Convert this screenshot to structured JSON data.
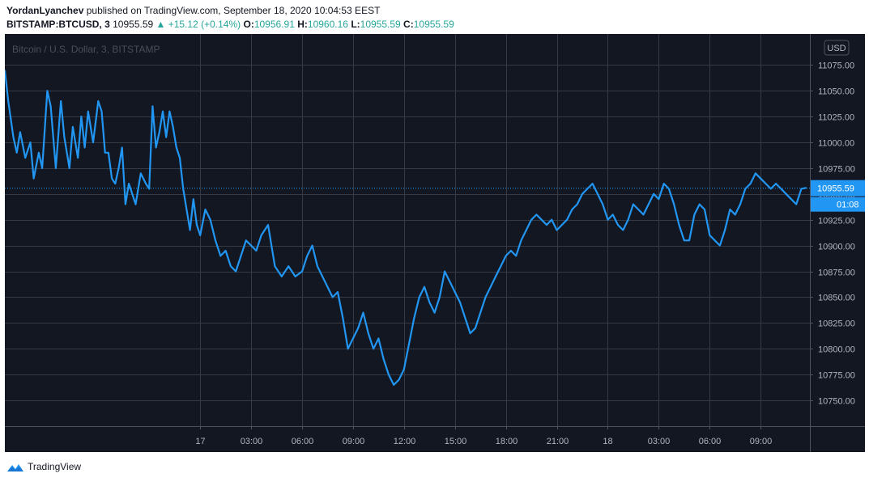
{
  "header": {
    "author": "YordanLyanchev",
    "published_text": "published on TradingView.com, September 18, 2020 10:04:53 EEST",
    "symbol": "BITSTAMP:BTCUSD, 3",
    "last": "10955.59",
    "change": "▲ +15.12 (+0.14%)",
    "o_label": "O:",
    "o_value": "10956.91",
    "h_label": "H:",
    "h_value": "10960.16",
    "l_label": "L:",
    "l_value": "10955.59",
    "c_label": "C:",
    "c_value": "10955.59"
  },
  "footer": {
    "brand": "TradingView",
    "logo_icon": "tradingview-logo-icon"
  },
  "colors": {
    "background": "#131722",
    "grid": "#363a45",
    "line": "#2196f3",
    "text": "#b2b5be",
    "up": "#26a69a"
  },
  "chart_data": {
    "type": "line",
    "watermark": "Bitcoin / U.S. Dollar, 3, BITSTAMP",
    "currency_badge": "USD",
    "last_price_label": "10955.59",
    "countdown_label": "01:08",
    "last_price": 10955.59,
    "ylim": [
      10725,
      11105
    ],
    "yticks": [
      10750,
      10775,
      10800,
      10825,
      10850,
      10875,
      10900,
      10925,
      10950,
      10975,
      11000,
      11025,
      11050,
      11075
    ],
    "ytick_labels": [
      "10750.00",
      "10775.00",
      "10800.00",
      "10825.00",
      "10850.00",
      "10875.00",
      "10900.00",
      "10925.00",
      "10950.00",
      "10975.00",
      "11000.00",
      "11025.00",
      "11050.00",
      "11075.00"
    ],
    "xlim": [
      -11.5,
      35.9
    ],
    "xticks": [
      0,
      3,
      6,
      9,
      12,
      15,
      18,
      21,
      24,
      27,
      30,
      33
    ],
    "xtick_labels": [
      "17",
      "03:00",
      "06:00",
      "09:00",
      "12:00",
      "15:00",
      "18:00",
      "21:00",
      "18",
      "03:00",
      "06:00",
      "09:00"
    ],
    "series": [
      {
        "x": [
          -11.5,
          -11.3,
          -11.0,
          -10.8,
          -10.6,
          -10.3,
          -10.0,
          -9.8,
          -9.5,
          -9.3,
          -9.2,
          -9.0,
          -8.8,
          -8.5,
          -8.2,
          -8.0,
          -7.7,
          -7.5,
          -7.2,
          -7.0,
          -6.8,
          -6.6,
          -6.3,
          -6.0,
          -5.8,
          -5.6,
          -5.4,
          -5.2,
          -5.0,
          -4.8,
          -4.6,
          -4.4,
          -4.2,
          -4.0,
          -3.8,
          -3.5,
          -3.2,
          -3.0,
          -2.8,
          -2.6,
          -2.4,
          -2.2,
          -2.0,
          -1.8,
          -1.6,
          -1.4,
          -1.2,
          -1.0,
          -0.8,
          -0.6,
          -0.4,
          -0.2,
          0.0,
          0.3,
          0.6,
          0.9,
          1.2,
          1.5,
          1.8,
          2.1,
          2.4,
          2.7,
          3.0,
          3.3,
          3.6,
          4.0,
          4.4,
          4.8,
          5.2,
          5.6,
          6.0,
          6.3,
          6.6,
          6.9,
          7.2,
          7.5,
          7.8,
          8.1,
          8.4,
          8.7,
          9.0,
          9.3,
          9.6,
          9.9,
          10.2,
          10.5,
          10.8,
          11.1,
          11.4,
          11.7,
          12.0,
          12.3,
          12.6,
          12.9,
          13.2,
          13.5,
          13.8,
          14.1,
          14.4,
          14.7,
          15.0,
          15.3,
          15.6,
          15.9,
          16.2,
          16.5,
          16.8,
          17.1,
          17.4,
          17.7,
          18.0,
          18.3,
          18.6,
          18.9,
          19.2,
          19.5,
          19.8,
          20.1,
          20.4,
          20.7,
          21.0,
          21.3,
          21.6,
          21.9,
          22.2,
          22.5,
          22.8,
          23.1,
          23.4,
          23.7,
          24.0,
          24.3,
          24.6,
          24.9,
          25.2,
          25.5,
          25.8,
          26.1,
          26.4,
          26.7,
          27.0,
          27.3,
          27.6,
          27.9,
          28.2,
          28.5,
          28.8,
          29.1,
          29.4,
          29.7,
          30.0,
          30.3,
          30.6,
          30.9,
          31.2,
          31.5,
          31.8,
          32.1,
          32.4,
          32.7,
          33.0,
          33.3,
          33.6,
          33.9,
          34.2,
          34.5,
          34.8,
          35.1,
          35.4,
          35.7
        ],
        "y": [
          11070,
          11040,
          11005,
          10990,
          11010,
          10985,
          11000,
          10965,
          10990,
          10975,
          11000,
          11050,
          11035,
          10975,
          11040,
          11005,
          10975,
          11015,
          10985,
          11025,
          10995,
          11030,
          11000,
          11040,
          11030,
          10990,
          10990,
          10965,
          10960,
          10975,
          10995,
          10940,
          10960,
          10950,
          10940,
          10970,
          10960,
          10955,
          11035,
          10995,
          11010,
          11030,
          11005,
          11030,
          11015,
          10995,
          10985,
          10955,
          10935,
          10915,
          10945,
          10920,
          10910,
          10935,
          10925,
          10905,
          10890,
          10895,
          10880,
          10875,
          10890,
          10905,
          10900,
          10895,
          10910,
          10920,
          10880,
          10870,
          10880,
          10870,
          10875,
          10890,
          10900,
          10880,
          10870,
          10860,
          10850,
          10855,
          10830,
          10800,
          10810,
          10820,
          10835,
          10815,
          10800,
          10810,
          10790,
          10775,
          10765,
          10770,
          10780,
          10805,
          10830,
          10850,
          10860,
          10845,
          10835,
          10850,
          10875,
          10865,
          10855,
          10845,
          10830,
          10815,
          10820,
          10835,
          10850,
          10860,
          10870,
          10880,
          10890,
          10895,
          10890,
          10905,
          10915,
          10925,
          10930,
          10925,
          10920,
          10925,
          10915,
          10920,
          10925,
          10935,
          10940,
          10950,
          10955,
          10960,
          10950,
          10940,
          10925,
          10930,
          10920,
          10915,
          10925,
          10940,
          10935,
          10930,
          10940,
          10950,
          10945,
          10960,
          10955,
          10940,
          10920,
          10905,
          10905,
          10930,
          10940,
          10935,
          10910,
          10905,
          10900,
          10915,
          10935,
          10930,
          10940,
          10955,
          10960,
          10970,
          10965,
          10960,
          10955,
          10960,
          10955,
          10950,
          10945,
          10940,
          10955,
          10956
        ]
      }
    ]
  }
}
